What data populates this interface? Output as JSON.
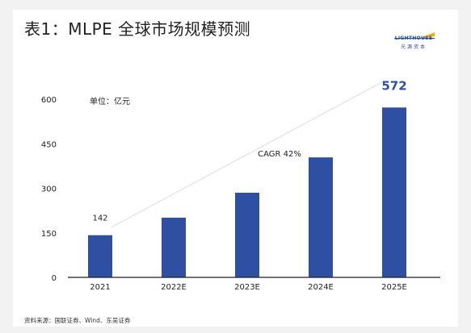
{
  "title": "表1：MLPE 全球市场规模预测",
  "logo": {
    "en": "LIGHTHOUSE",
    "cn": "光源资本"
  },
  "source": "资料来源：国联证券、Wind、东吴证券",
  "colors": {
    "bar": "#2f4fa2",
    "trend": "#e6e6e6",
    "axis": "#222222",
    "highlight": "#2f4fa2"
  },
  "chart_data": {
    "type": "bar",
    "unit_label": "单位：亿元",
    "categories": [
      "2021",
      "2022E",
      "2023E",
      "2024E",
      "2025E"
    ],
    "values": [
      142,
      201,
      285,
      404,
      572
    ],
    "ylim": [
      0,
      600
    ],
    "yticks": [
      0,
      150,
      300,
      450,
      600
    ],
    "grid": false,
    "data_labels": [
      {
        "index": 0,
        "text": "142",
        "style": "normal"
      },
      {
        "index": 4,
        "text": "572",
        "style": "highlight"
      }
    ],
    "annotation": {
      "text": "CAGR 42%",
      "from_index": 0,
      "to_index": 4
    }
  }
}
